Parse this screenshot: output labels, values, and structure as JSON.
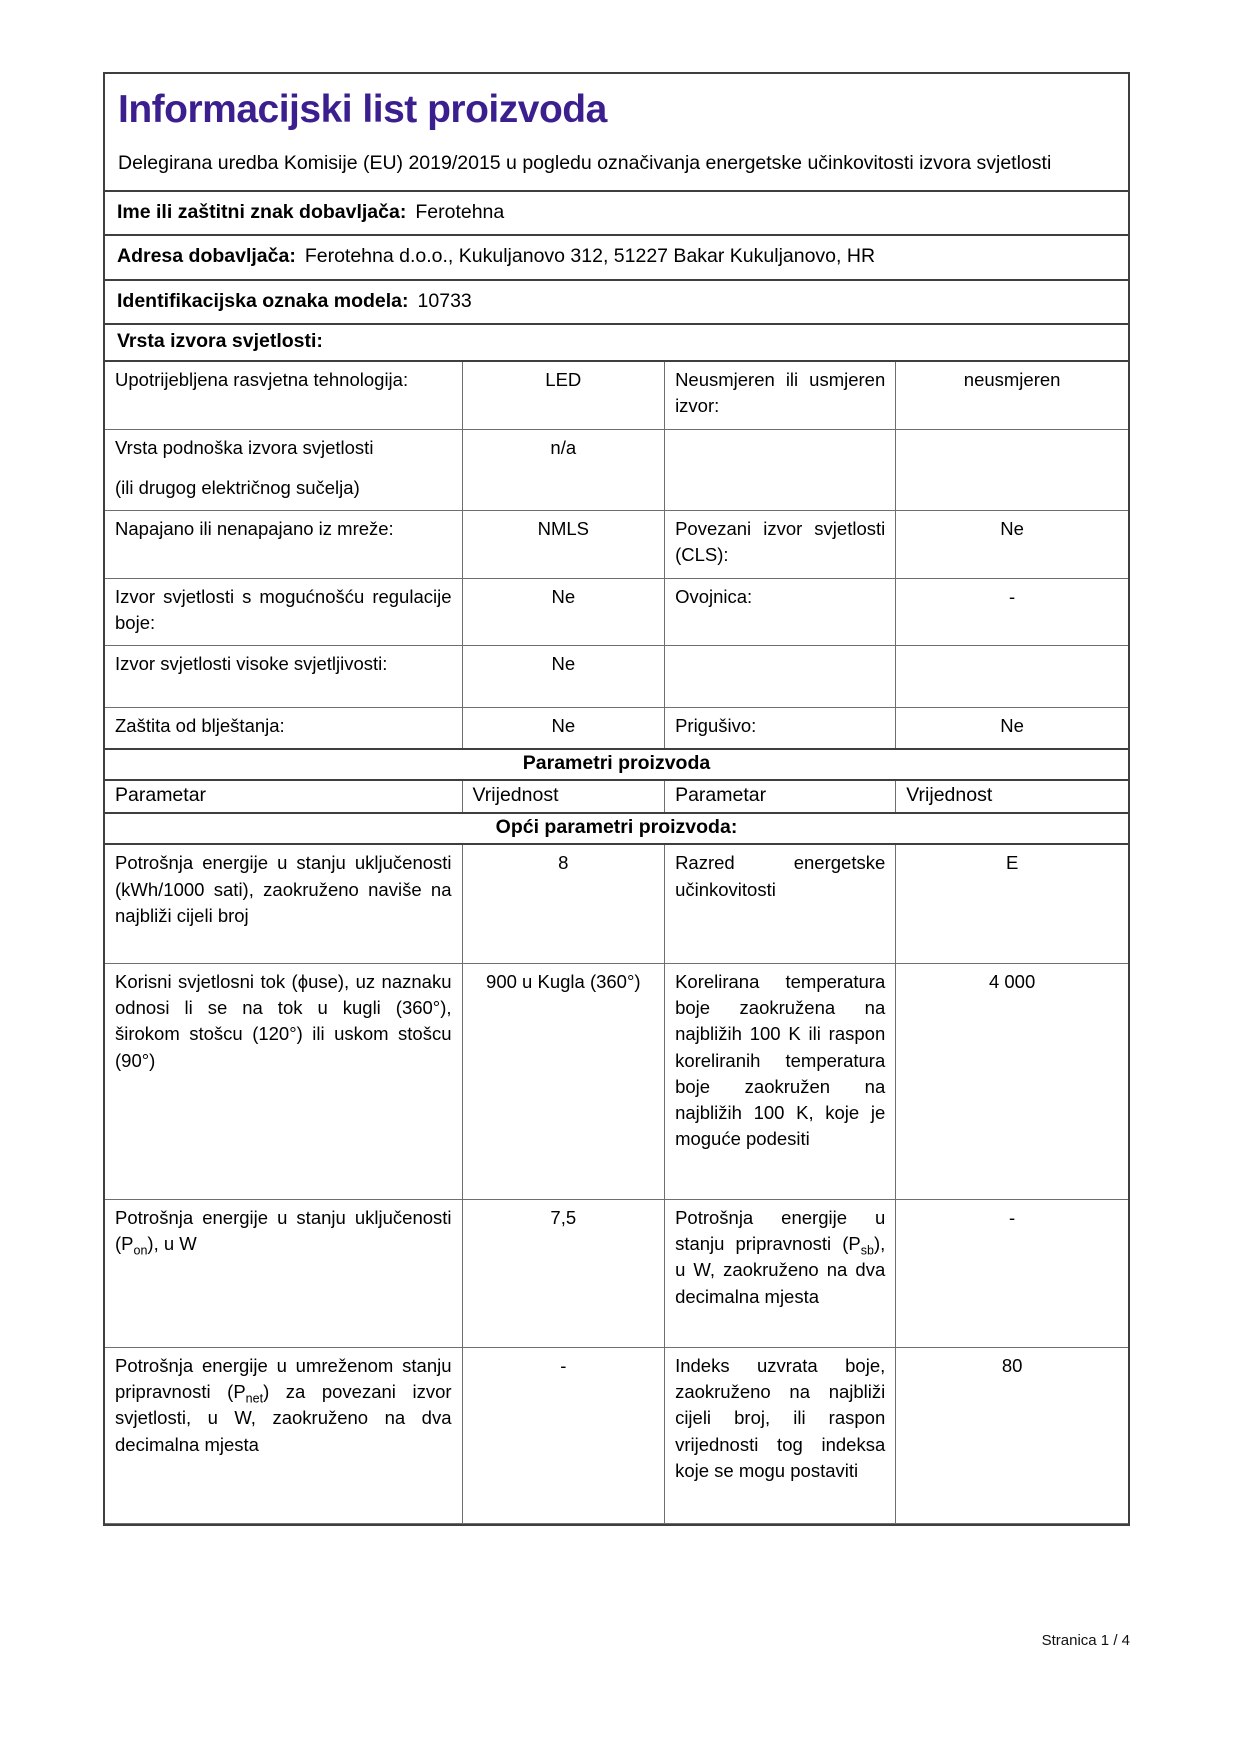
{
  "document": {
    "title": "Informacijski list proizvoda",
    "subtitle": "Delegirana uredba Komisije (EU) 2019/2015 u pogledu označivanja energetske učinkovitosti izvora svjetlosti",
    "accent_color": "#3b1f8f",
    "footer": {
      "page_label": "Stranica 1 / 4"
    }
  },
  "supplier": {
    "rows": [
      {
        "label": "Ime ili zaštitni znak dobavljača:",
        "value": "Ferotehna"
      },
      {
        "label": "Adresa dobavljača:",
        "value": "Ferotehna d.o.o., Kukuljanovo 312, 51227 Bakar Kukuljanovo, HR"
      },
      {
        "label": "Identifikacijska oznaka modela:",
        "value": "10733"
      }
    ]
  },
  "light_source_type": {
    "heading": "Vrsta izvora svjetlosti:",
    "rows": [
      {
        "param1": "Upotrijebljena rasvjetna tehnologija:",
        "value1": "LED",
        "param2": "Neusmjeren ili usmjeren izvor:",
        "value2": "neusmjeren"
      },
      {
        "param1_line1": "Vrsta podnoška izvora svjetlosti",
        "param1_line2": "(ili drugog električnog sučelja)",
        "value1": "n/a",
        "param2": "",
        "value2": ""
      },
      {
        "param1": "Napajano ili nenapajano iz mreže:",
        "value1": "NMLS",
        "param2": "Povezani izvor svjetlosti (CLS):",
        "value2": "Ne"
      },
      {
        "param1": "Izvor svjetlosti s mogućnošću regulacije boje:",
        "value1": "Ne",
        "param2": "Ovojnica:",
        "value2": "-"
      },
      {
        "param1": "Izvor svjetlosti visoke svjetljivosti:",
        "value1": "Ne",
        "param2": "",
        "value2": ""
      },
      {
        "param1": "Zaštita od blještanja:",
        "value1": "Ne",
        "param2": "Prigušivo:",
        "value2": "Ne"
      }
    ]
  },
  "product_parameters": {
    "heading": "Parametri proizvoda",
    "column_headers": [
      "Parametar",
      "Vrijednost",
      "Parametar",
      "Vrijednost"
    ],
    "general_heading": "Opći parametri proizvoda:",
    "rows": [
      {
        "param1": "Potrošnja energije u stanju uključenosti (kWh/1000 sati), zaokruženo naviše na najbliži cijeli broj",
        "value1": "8",
        "param2": "Razred energetske učinkovitosti",
        "value2": "E"
      },
      {
        "param1": "Korisni svjetlosni tok (ϕuse), uz naznaku odnosi li se na tok u kugli (360°), širokom stošcu (120°) ili uskom stošcu (90°)",
        "value1": "900 u Kugla (360°)",
        "param2": "Korelirana temperatura boje zaokružena na najbližih 100 K ili raspon koreliranih temperatura boje zaokružen na najbližih 100 K, koje je moguće podesiti",
        "value2": "4 000"
      },
      {
        "param1_pre": "Potrošnja energije u stanju uključenosti (P",
        "param1_sub": "on",
        "param1_post": "), u W",
        "value1": "7,5",
        "param2_pre": "Potrošnja energije u stanju pripravnosti (P",
        "param2_sub": "sb",
        "param2_post": "), u W, zaokruženo na dva decimalna mjesta",
        "value2": "-"
      },
      {
        "param1_pre": "Potrošnja energije u umreženom stanju pripravnosti (P",
        "param1_sub": "net",
        "param1_post": ") za povezani izvor svjetlosti, u W, zaokruženo na dva decimalna mjesta",
        "value1": "-",
        "param2": "Indeks uzvrata boje, zaokruženo na najbliži cijeli broj, ili raspon vrijednosti tog indeksa koje se mogu postaviti",
        "value2": "80"
      }
    ]
  }
}
